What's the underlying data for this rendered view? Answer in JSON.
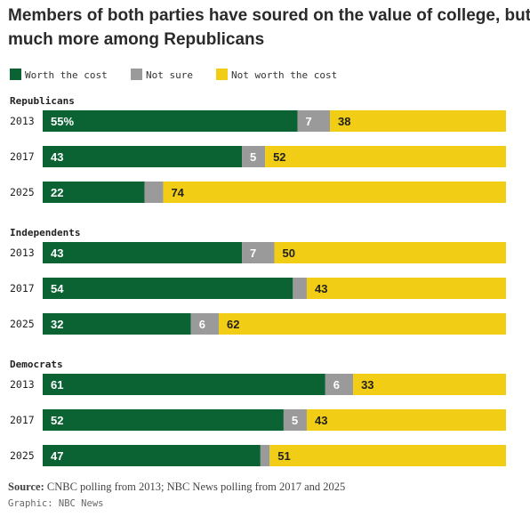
{
  "chart_data": {
    "type": "bar",
    "stacked": true,
    "orientation": "horizontal",
    "title": "Members of both parties have soured on the value of college, but much more among Republicans",
    "title_lines": [
      "Members of both parties have soured on the value of college, but",
      "much more among Republicans"
    ],
    "legend": [
      {
        "name": "Worth the cost",
        "color": "#0b6334"
      },
      {
        "name": "Not sure",
        "color": "#9a9a9a"
      },
      {
        "name": "Not worth the cost",
        "color": "#f2cd16"
      }
    ],
    "legend_position": "top-left",
    "xlim": [
      0,
      100
    ],
    "groups": [
      {
        "name": "Republicans",
        "rows": [
          {
            "year": "2013",
            "values": [
              55,
              7,
              38
            ],
            "labels": [
              "55%",
              "7",
              "38"
            ]
          },
          {
            "year": "2017",
            "values": [
              43,
              5,
              52
            ],
            "labels": [
              "43",
              "5",
              "52"
            ]
          },
          {
            "year": "2025",
            "values": [
              22,
              4,
              74
            ],
            "labels": [
              "22",
              "",
              "74"
            ]
          }
        ]
      },
      {
        "name": "Independents",
        "rows": [
          {
            "year": "2013",
            "values": [
              43,
              7,
              50
            ],
            "labels": [
              "43",
              "7",
              "50"
            ]
          },
          {
            "year": "2017",
            "values": [
              54,
              3,
              43
            ],
            "labels": [
              "54",
              "",
              "43"
            ]
          },
          {
            "year": "2025",
            "values": [
              32,
              6,
              62
            ],
            "labels": [
              "32",
              "6",
              "62"
            ]
          }
        ]
      },
      {
        "name": "Democrats",
        "rows": [
          {
            "year": "2013",
            "values": [
              61,
              6,
              33
            ],
            "labels": [
              "61",
              "6",
              "33"
            ]
          },
          {
            "year": "2017",
            "values": [
              52,
              5,
              43
            ],
            "labels": [
              "52",
              "5",
              "43"
            ]
          },
          {
            "year": "2025",
            "values": [
              47,
              2,
              51
            ],
            "labels": [
              "47",
              "",
              "51"
            ]
          }
        ]
      }
    ],
    "label_colors": [
      "#ffffff",
      "#ffffff",
      "#222222"
    ]
  },
  "source": {
    "label": "Source:",
    "text": "CNBC polling from 2013; NBC News polling from 2017 and 2025"
  },
  "credit": "Graphic: NBC News"
}
